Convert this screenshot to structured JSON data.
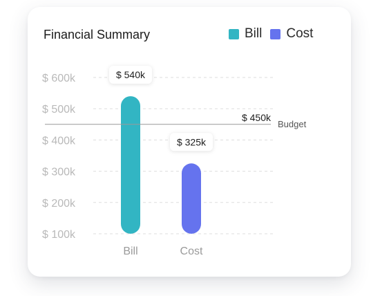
{
  "colors": {
    "bill": "#32b5c3",
    "cost": "#6573ee",
    "grid": "#dddddd",
    "reference": "#999999"
  },
  "chart_data": {
    "type": "bar",
    "title": "Financial Summary",
    "categories": [
      "Bill",
      "Cost"
    ],
    "values": [
      540,
      325
    ],
    "value_labels": [
      "$ 540k",
      "$ 325k"
    ],
    "bar_colors": [
      "#32b5c3",
      "#6573ee"
    ],
    "yticks": [
      100,
      200,
      300,
      400,
      500,
      600
    ],
    "ytick_labels": [
      "$ 100k",
      "$ 200k",
      "$ 300k",
      "$ 400k",
      "$ 500k",
      "$ 600k"
    ],
    "ylim": [
      100,
      600
    ],
    "grid": true,
    "legend": {
      "position": "top-right",
      "entries": [
        {
          "label": "Bill",
          "color": "#32b5c3"
        },
        {
          "label": "Cost",
          "color": "#6573ee"
        }
      ]
    },
    "reference_line": {
      "value": 450,
      "value_label": "$ 450k",
      "name": "Budget"
    }
  }
}
